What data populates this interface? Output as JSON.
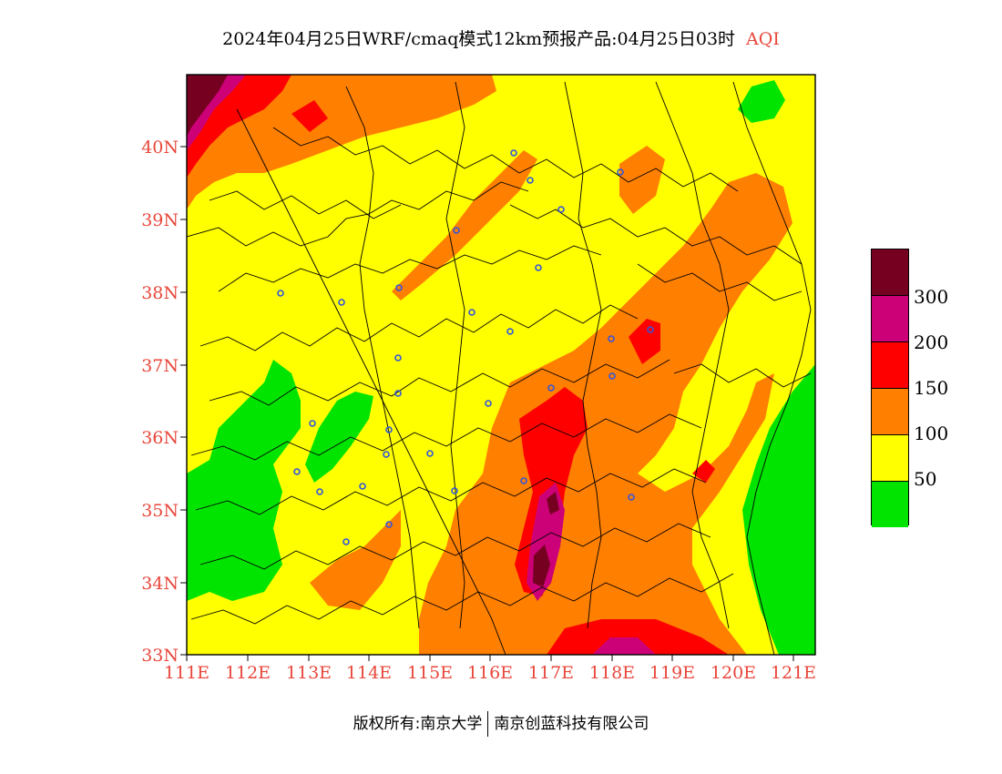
{
  "header": {
    "title": "2024年04月25日WRF/cmaq模式12km预报产品:04月25日03时",
    "aqi": "AQI"
  },
  "axes": {
    "lat_labels": [
      "40N",
      "39N",
      "38N",
      "37N",
      "36N",
      "35N",
      "34N",
      "33N"
    ],
    "lon_labels": [
      "111E",
      "112E",
      "113E",
      "114E",
      "115E",
      "116E",
      "117E",
      "118E",
      "119E",
      "120E",
      "121E"
    ]
  },
  "legend": {
    "colors": [
      "#760020",
      "#cc0077",
      "#ff0000",
      "#ff7f00",
      "#ffff00",
      "#00e400"
    ],
    "labels": [
      "300",
      "200",
      "150",
      "100",
      "50"
    ]
  },
  "footer": {
    "left": "版权所有:南京大学",
    "right": "南京创蓝科技有限公司"
  }
}
